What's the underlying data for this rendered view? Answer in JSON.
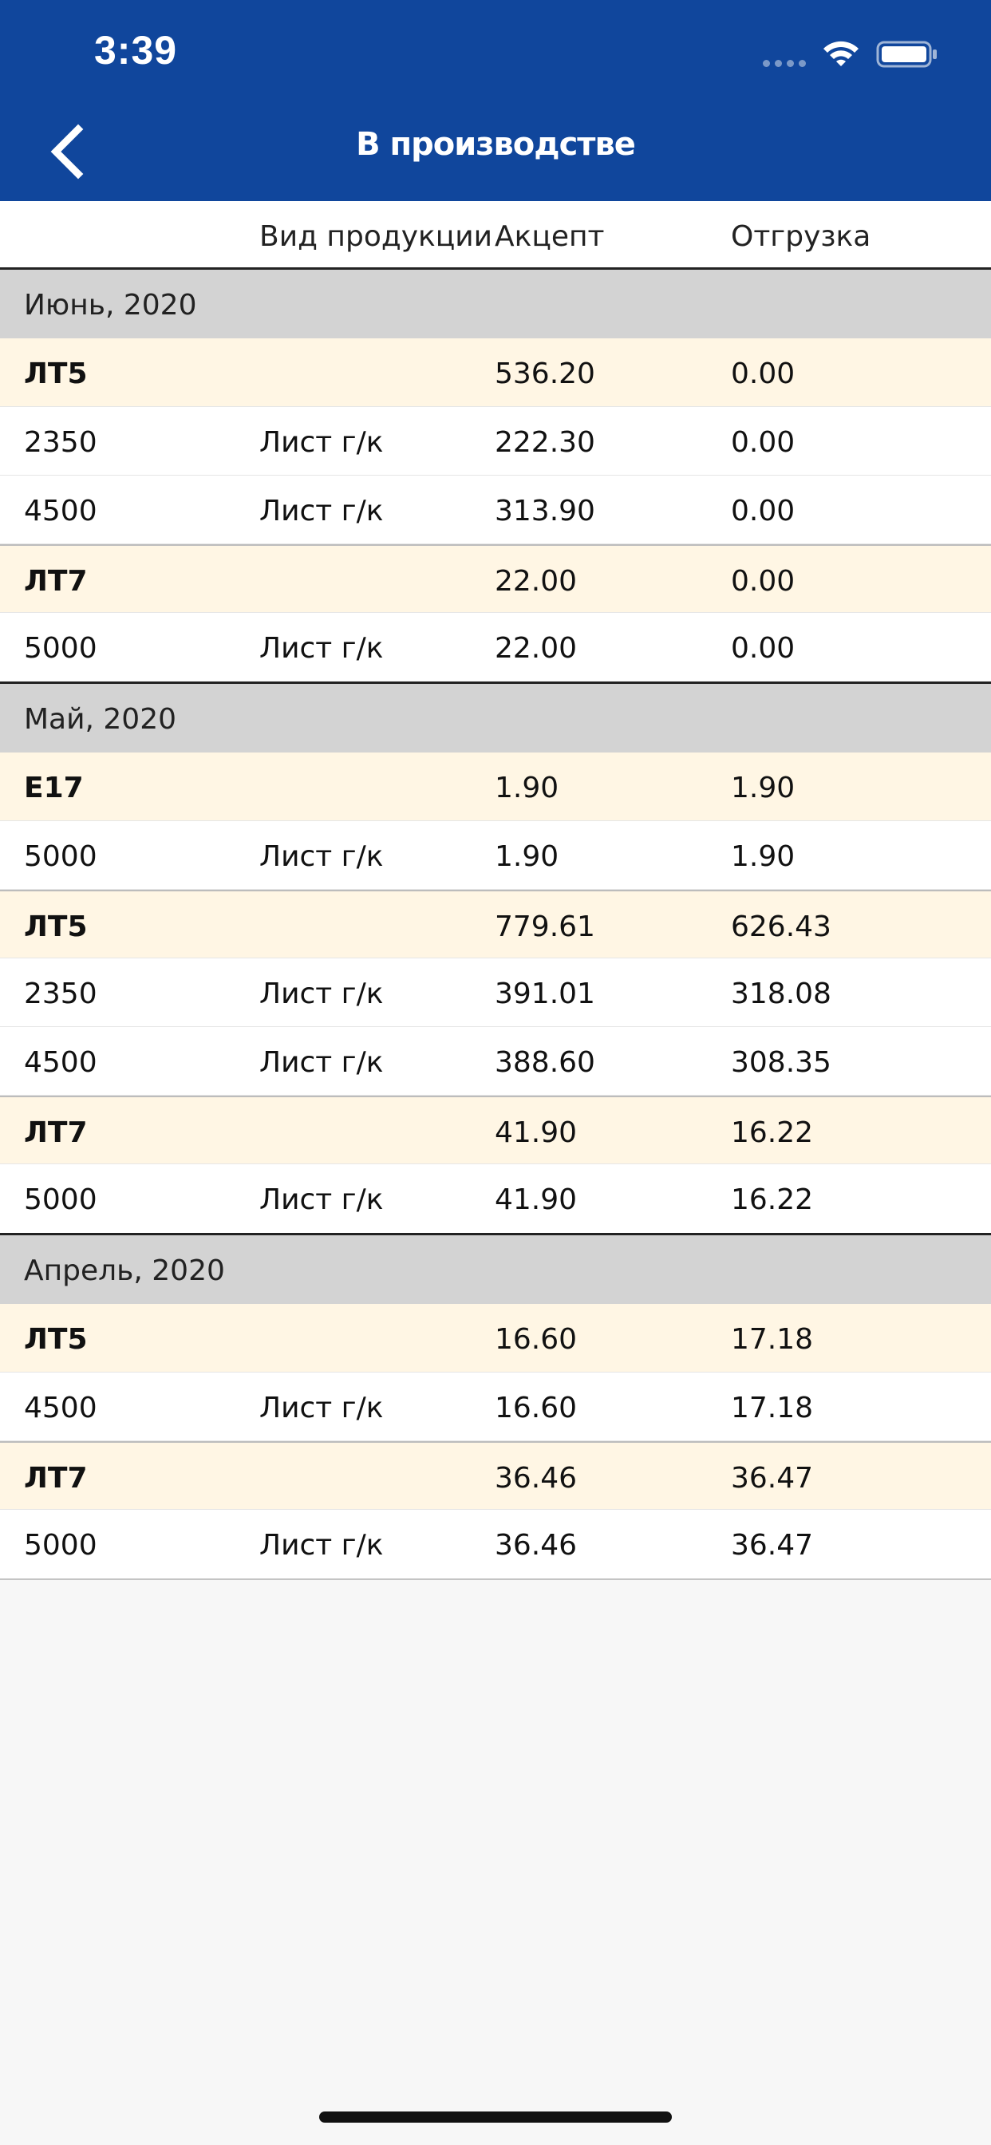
{
  "status_bar": {
    "time": "3:39"
  },
  "header": {
    "title": "В производстве",
    "accent_color": "#10469c"
  },
  "columns": [
    "",
    "Вид продукции",
    "Акцепт",
    "Отгрузка"
  ],
  "sections": [
    {
      "title": "Июнь, 2020",
      "rows": [
        {
          "type": "group",
          "name": "ЛТ5",
          "product": "",
          "accept": "536.20",
          "shipment": "0.00"
        },
        {
          "type": "item",
          "name": "2350",
          "product": "Лист г/к",
          "accept": "222.30",
          "shipment": "0.00"
        },
        {
          "type": "item",
          "name": "4500",
          "product": "Лист г/к",
          "accept": "313.90",
          "shipment": "0.00"
        },
        {
          "type": "group",
          "name": "ЛТ7",
          "product": "",
          "accept": "22.00",
          "shipment": "0.00"
        },
        {
          "type": "item",
          "name": "5000",
          "product": "Лист г/к",
          "accept": "22.00",
          "shipment": "0.00"
        }
      ]
    },
    {
      "title": "Май, 2020",
      "rows": [
        {
          "type": "group",
          "name": "Е17",
          "product": "",
          "accept": "1.90",
          "shipment": "1.90"
        },
        {
          "type": "item",
          "name": "5000",
          "product": "Лист г/к",
          "accept": "1.90",
          "shipment": "1.90"
        },
        {
          "type": "group",
          "name": "ЛТ5",
          "product": "",
          "accept": "779.61",
          "shipment": "626.43"
        },
        {
          "type": "item",
          "name": "2350",
          "product": "Лист г/к",
          "accept": "391.01",
          "shipment": "318.08"
        },
        {
          "type": "item",
          "name": "4500",
          "product": "Лист г/к",
          "accept": "388.60",
          "shipment": "308.35"
        },
        {
          "type": "group",
          "name": "ЛТ7",
          "product": "",
          "accept": "41.90",
          "shipment": "16.22"
        },
        {
          "type": "item",
          "name": "5000",
          "product": "Лист г/к",
          "accept": "41.90",
          "shipment": "16.22"
        }
      ]
    },
    {
      "title": "Апрель, 2020",
      "rows": [
        {
          "type": "group",
          "name": "ЛТ5",
          "product": "",
          "accept": "16.60",
          "shipment": "17.18"
        },
        {
          "type": "item",
          "name": "4500",
          "product": "Лист г/к",
          "accept": "16.60",
          "shipment": "17.18"
        },
        {
          "type": "group",
          "name": "ЛТ7",
          "product": "",
          "accept": "36.46",
          "shipment": "36.47"
        },
        {
          "type": "item",
          "name": "5000",
          "product": "Лист г/к",
          "accept": "36.46",
          "shipment": "36.47"
        }
      ]
    }
  ],
  "icons": {
    "back": "chevron-left-icon",
    "wifi": "wifi-icon",
    "battery": "battery-icon",
    "signal": "signal-dots-icon"
  }
}
